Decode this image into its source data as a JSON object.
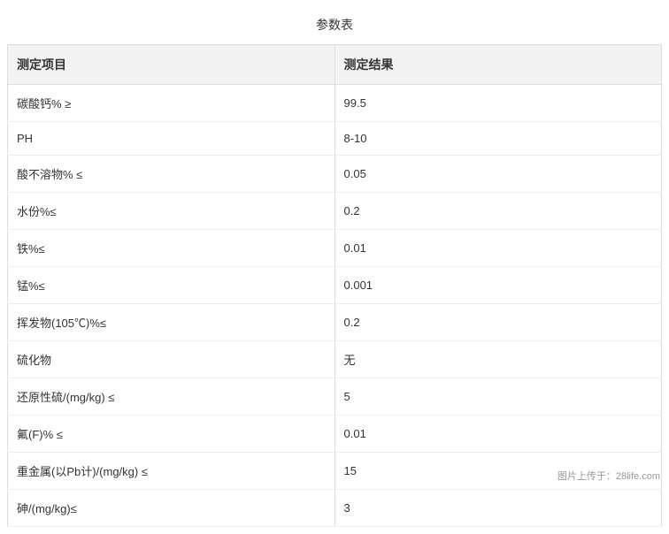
{
  "title": "参数表",
  "columns": [
    "测定项目",
    "测定结果"
  ],
  "rows": [
    [
      "碳酸钙% ≥",
      "99.5"
    ],
    [
      "PH",
      "8-10"
    ],
    [
      "酸不溶物% ≤",
      "0.05"
    ],
    [
      "水份%≤",
      "0.2"
    ],
    [
      "铁%≤",
      "0.01"
    ],
    [
      "锰%≤",
      "0.001"
    ],
    [
      "挥发物(105℃)%≤",
      "0.2"
    ],
    [
      "硫化物",
      "无"
    ],
    [
      "还原性硫/(mg/kg) ≤",
      "5"
    ],
    [
      "氟(F)% ≤",
      "0.01"
    ],
    [
      "重金属(以Pb计)/(mg/kg) ≤",
      "15"
    ],
    [
      "砷/(mg/kg)≤",
      "3"
    ]
  ],
  "watermark": "图片上传于：28life.com",
  "colors": {
    "header_bg": "#f3f3f3",
    "border": "#dddddd",
    "row_border": "#eeeeee",
    "text": "#333333",
    "watermark": "#999999",
    "background": "#ffffff"
  },
  "font_sizes": {
    "title": 14,
    "header": 14,
    "cell": 13,
    "watermark": 11
  }
}
